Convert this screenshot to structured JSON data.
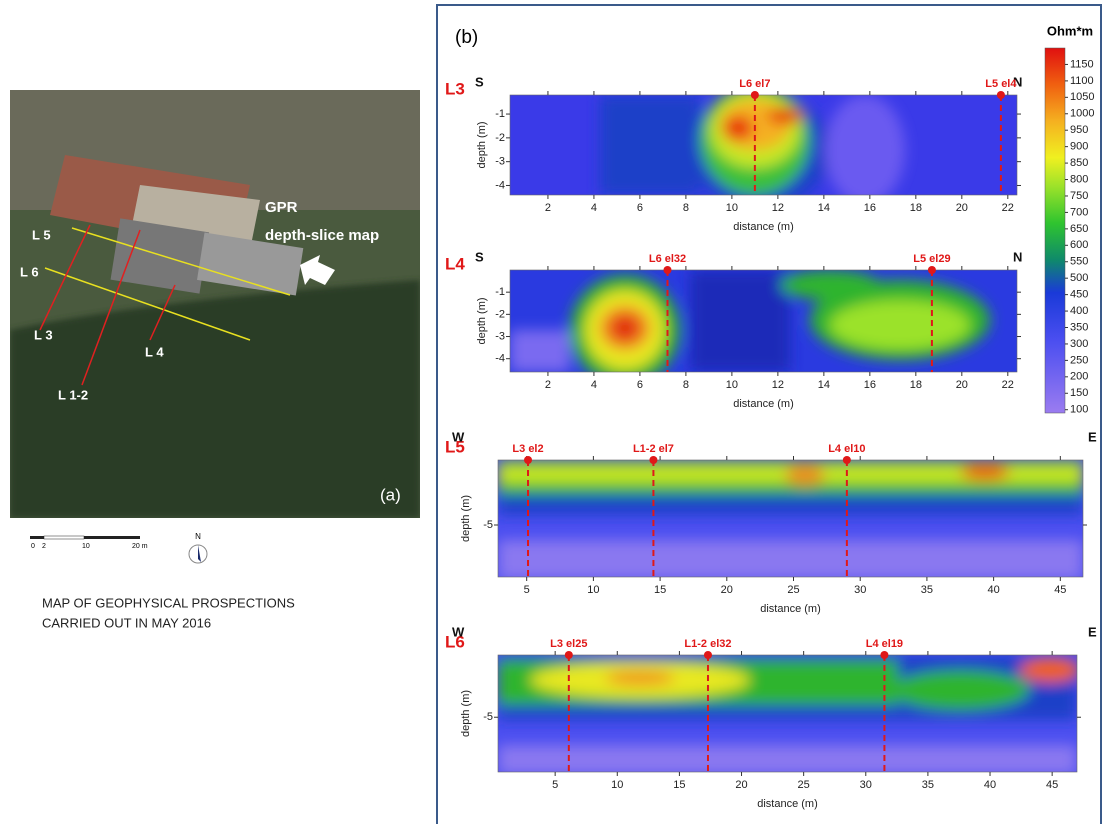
{
  "panel_a": {
    "label": "(a)",
    "map_labels": [
      "L 5",
      "L 6",
      "L 3",
      "L 4",
      "L 1-2"
    ],
    "gpr_label": [
      "GPR",
      "depth-slice map"
    ],
    "scale_labels": [
      "0",
      "2",
      "10",
      "20 m"
    ],
    "north": "N",
    "caption": [
      "MAP OF GEOPHYSICAL PROSPECTIONS",
      "CARRIED OUT IN MAY 2016"
    ]
  },
  "panel_b": {
    "label": "(b)",
    "colorbar": {
      "title": "Ohm*m",
      "lim": [
        90,
        1200
      ],
      "ticks": [
        1150,
        1100,
        1050,
        1000,
        950,
        900,
        850,
        800,
        750,
        700,
        650,
        600,
        550,
        500,
        450,
        400,
        350,
        300,
        250,
        200,
        150,
        100
      ]
    },
    "sections": [
      {
        "name": "L3",
        "left": "S",
        "right": "N",
        "xlabel": "distance (m)",
        "ylabel": "depth (m)",
        "xlim": [
          0.35,
          22.4
        ],
        "ylim": [
          -0.2,
          -4.4
        ],
        "xticks": [
          2,
          4,
          6,
          8,
          10,
          12,
          14,
          16,
          18,
          20,
          22
        ],
        "yticks": [
          -1,
          -2,
          -3,
          -4
        ],
        "markers": [
          {
            "label": "L6 el7",
            "x": 11.0
          },
          {
            "label": "L5 el4",
            "x": 21.7
          }
        ]
      },
      {
        "name": "L4",
        "left": "S",
        "right": "N",
        "xlabel": "distance (m)",
        "ylabel": "depth (m)",
        "xlim": [
          0.35,
          22.4
        ],
        "ylim": [
          0,
          -4.6
        ],
        "xticks": [
          2,
          4,
          6,
          8,
          10,
          12,
          14,
          16,
          18,
          20,
          22
        ],
        "yticks": [
          -1,
          -2,
          -3,
          -4
        ],
        "markers": [
          {
            "label": "L6 el32",
            "x": 7.2
          },
          {
            "label": "L5 el29",
            "x": 18.7
          }
        ]
      },
      {
        "name": "L5",
        "left": "W",
        "right": "E",
        "xlabel": "distance (m)",
        "ylabel": "depth (m)",
        "xlim": [
          2.85,
          46.7
        ],
        "ylim": [
          0,
          -9
        ],
        "xticks": [
          5,
          10,
          15,
          20,
          25,
          30,
          35,
          40,
          45
        ],
        "yticks": [
          -5
        ],
        "markers": [
          {
            "label": "L3 el2",
            "x": 5.1
          },
          {
            "label": "L1-2 el7",
            "x": 14.5
          },
          {
            "label": "L4 el10",
            "x": 29
          }
        ]
      },
      {
        "name": "L6",
        "left": "W",
        "right": "E",
        "xlabel": "distance (m)",
        "ylabel": "depth (m)",
        "xlim": [
          0.4,
          47
        ],
        "ylim": [
          0,
          -9.4
        ],
        "xticks": [
          5,
          10,
          15,
          20,
          25,
          30,
          35,
          40,
          45
        ],
        "yticks": [
          -5
        ],
        "markers": [
          {
            "label": "L3 el25",
            "x": 6.1
          },
          {
            "label": "L1-2 el32",
            "x": 17.3
          },
          {
            "label": "L4 el19",
            "x": 31.5
          }
        ]
      }
    ]
  }
}
